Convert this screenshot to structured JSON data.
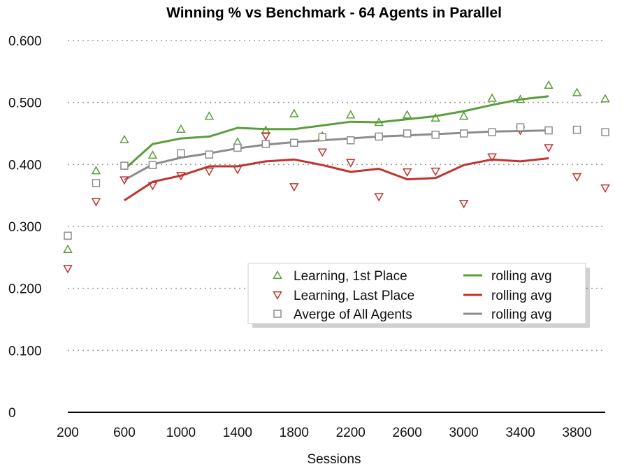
{
  "chart_data": {
    "type": "scatter",
    "title": "Winning % vs Benchmark - 64 Agents in Parallel",
    "xlabel": "Sessions",
    "ylabel": "",
    "xlim": [
      200,
      4000
    ],
    "ylim": [
      0,
      0.6
    ],
    "x_ticks": [
      "200",
      "600",
      "1000",
      "1400",
      "1800",
      "2200",
      "2600",
      "3000",
      "3400",
      "3800"
    ],
    "y_ticks": [
      "0.600",
      "0.500",
      "0.400",
      "0.300",
      "0.200",
      "0.100",
      "0"
    ],
    "grid": "horizontal dotted",
    "legend_position": "center-right",
    "series": [
      {
        "name": "Learning, 1st Place",
        "marker": "triangle-up",
        "color": "#5a9e3c",
        "x": [
          200,
          400,
          600,
          800,
          1000,
          1200,
          1400,
          1600,
          1800,
          2000,
          2200,
          2400,
          2600,
          2800,
          3000,
          3200,
          3400,
          3600,
          3800,
          4000
        ],
        "y": [
          0.263,
          0.39,
          0.44,
          0.415,
          0.457,
          0.478,
          0.436,
          0.455,
          0.482,
          0.446,
          0.48,
          0.468,
          0.48,
          0.475,
          0.478,
          0.507,
          0.505,
          0.528,
          0.516,
          0.506
        ]
      },
      {
        "name": "Learning, Last Place",
        "marker": "triangle-down",
        "color": "#c0332f",
        "x": [
          200,
          400,
          600,
          800,
          1000,
          1200,
          1400,
          1600,
          1800,
          2000,
          2200,
          2400,
          2600,
          2800,
          3000,
          3200,
          3400,
          3600,
          3800,
          4000
        ],
        "y": [
          0.232,
          0.34,
          0.375,
          0.366,
          0.382,
          0.389,
          0.392,
          0.446,
          0.364,
          0.42,
          0.403,
          0.348,
          0.388,
          0.389,
          0.337,
          0.412,
          0.455,
          0.427,
          0.38,
          0.362
        ]
      },
      {
        "name": "Averge of All Agents",
        "marker": "square",
        "color": "#8c8c8c",
        "x": [
          200,
          400,
          600,
          800,
          1000,
          1200,
          1400,
          1600,
          1800,
          2000,
          2200,
          2400,
          2600,
          2800,
          3000,
          3200,
          3400,
          3600,
          3800,
          4000
        ],
        "y": [
          0.285,
          0.37,
          0.398,
          0.399,
          0.418,
          0.416,
          0.427,
          0.433,
          0.435,
          0.444,
          0.439,
          0.445,
          0.45,
          0.448,
          0.45,
          0.452,
          0.46,
          0.455,
          0.456,
          0.452
        ]
      },
      {
        "name": "rolling avg",
        "marker": "line",
        "color": "#5a9e3c",
        "x": [
          600,
          800,
          1000,
          1200,
          1400,
          1600,
          1800,
          2000,
          2200,
          2400,
          2600,
          2800,
          3000,
          3200,
          3400,
          3600
        ],
        "y": [
          0.392,
          0.433,
          0.442,
          0.445,
          0.459,
          0.457,
          0.457,
          0.463,
          0.469,
          0.468,
          0.473,
          0.478,
          0.486,
          0.496,
          0.505,
          0.51
        ]
      },
      {
        "name": "rolling avg",
        "marker": "line",
        "color": "#c0332f",
        "x": [
          600,
          800,
          1000,
          1200,
          1400,
          1600,
          1800,
          2000,
          2200,
          2400,
          2600,
          2800,
          3000,
          3200,
          3400,
          3600
        ],
        "y": [
          0.342,
          0.372,
          0.382,
          0.397,
          0.397,
          0.405,
          0.408,
          0.399,
          0.388,
          0.393,
          0.376,
          0.378,
          0.399,
          0.408,
          0.405,
          0.41
        ]
      },
      {
        "name": "rolling avg",
        "marker": "line",
        "color": "#8c8c8c",
        "x": [
          600,
          800,
          1000,
          1200,
          1400,
          1600,
          1800,
          2000,
          2200,
          2400,
          2600,
          2800,
          3000,
          3200,
          3400,
          3600
        ],
        "y": [
          0.375,
          0.4,
          0.411,
          0.418,
          0.426,
          0.432,
          0.436,
          0.439,
          0.442,
          0.445,
          0.447,
          0.449,
          0.451,
          0.453,
          0.454,
          0.455
        ]
      }
    ],
    "legend": {
      "col1": [
        "Learning, 1st Place",
        "Learning, Last Place",
        "Averge of All Agents"
      ],
      "col2": [
        "rolling avg",
        "rolling avg",
        "rolling avg"
      ]
    }
  }
}
